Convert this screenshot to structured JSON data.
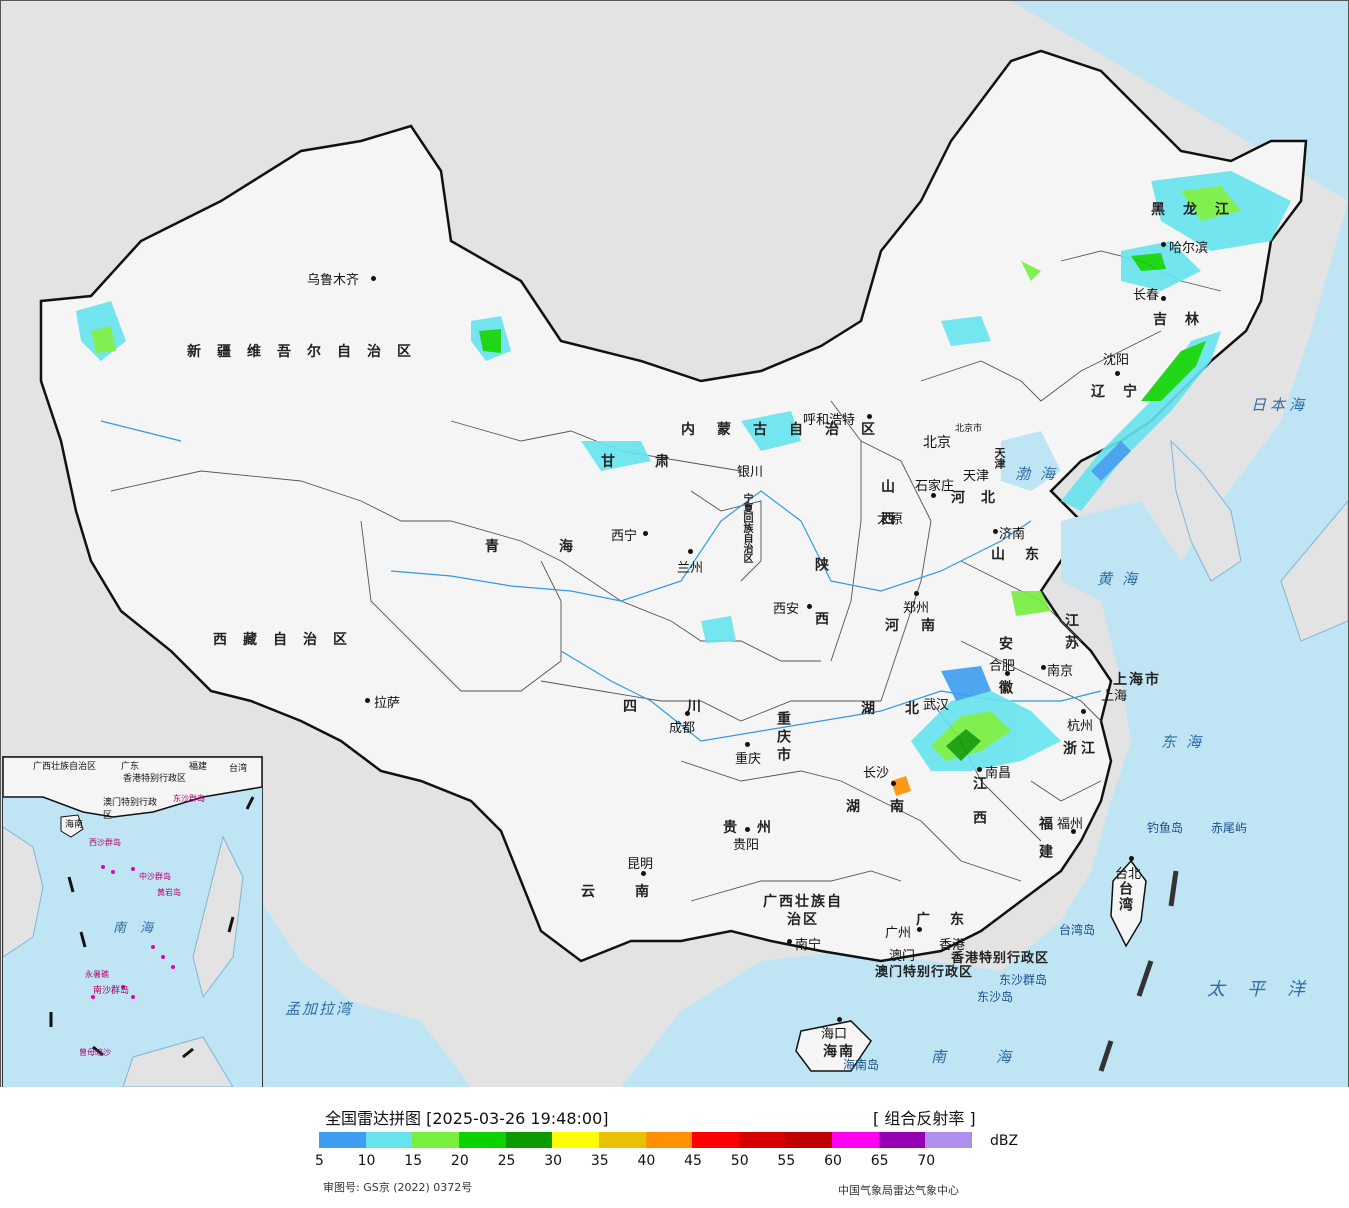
{
  "map": {
    "provinces": [
      "新疆维吾尔自治区",
      "西藏自治区",
      "青海",
      "甘肃",
      "内蒙古自治区",
      "黑龙江",
      "吉林",
      "辽宁",
      "河北",
      "山西",
      "陕西",
      "宁夏回族自治区",
      "四川",
      "重庆市",
      "云南",
      "贵州",
      "广西壮族自治区",
      "广东",
      "湖南",
      "湖北",
      "河南",
      "山东",
      "江苏",
      "安徽",
      "浙江",
      "江西",
      "福建",
      "台湾",
      "海南",
      "上海市",
      "北京市",
      "天津",
      "香港特别行政区",
      "澳门特别行政区"
    ],
    "cities": [
      "乌鲁木齐",
      "拉萨",
      "西宁",
      "兰州",
      "银川",
      "呼和浩特",
      "北京",
      "天津",
      "石家庄",
      "太原",
      "济南",
      "郑州",
      "西安",
      "成都",
      "重庆",
      "贵阳",
      "昆明",
      "南宁",
      "广州",
      "澳门",
      "香港",
      "长沙",
      "武汉",
      "南昌",
      "合肥",
      "南京",
      "上海",
      "杭州",
      "福州",
      "台北",
      "海口",
      "沈阳",
      "长春",
      "哈尔滨"
    ],
    "seas": [
      "渤海",
      "黄海",
      "东海",
      "日本海",
      "南海",
      "太平洋",
      "孟加拉湾"
    ],
    "islands": [
      "钓鱼岛",
      "赤尾屿",
      "台湾岛",
      "东沙群岛",
      "东沙岛",
      "海南岛"
    ],
    "inset_labels": [
      "广西壮族自治区",
      "广东",
      "福建",
      "台湾",
      "香港特别行政区",
      "澳门特别行政区",
      "东沙群岛",
      "海南",
      "西沙群岛",
      "中沙群岛",
      "黄岩岛",
      "南海",
      "永暑礁",
      "南沙群岛",
      "曾母暗沙"
    ]
  },
  "legend": {
    "title": "全国雷达拼图 [2025-03-26 19:48:00]",
    "product": "[ 组合反射率 ]",
    "unit": "dBZ",
    "ticks": [
      "5",
      "10",
      "15",
      "20",
      "25",
      "30",
      "35",
      "40",
      "45",
      "50",
      "55",
      "60",
      "65",
      "70"
    ],
    "colors": [
      "#3d9df0",
      "#66e4ee",
      "#76ef3f",
      "#0bd200",
      "#0b9a00",
      "#ffff00",
      "#e6c200",
      "#ff9000",
      "#ff0000",
      "#d60000",
      "#c00000",
      "#ff00f0",
      "#9600b4",
      "#ad90f0"
    ],
    "approval": "审图号: GS京 (2022) 0372号",
    "agency": "中国气象局雷达气象中心"
  }
}
